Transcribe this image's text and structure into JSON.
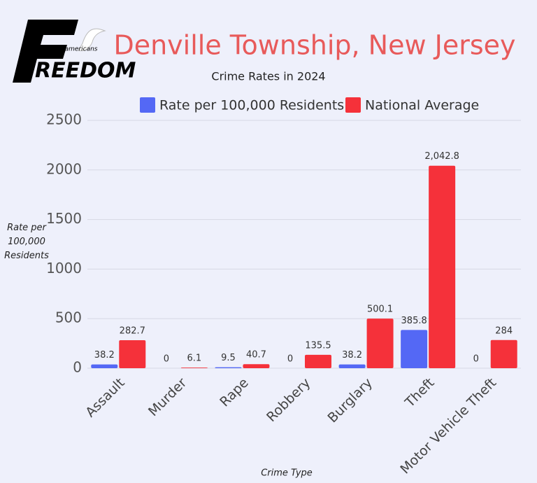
{
  "logo": {
    "tagline": "for all americans",
    "word": "REEDOM"
  },
  "chart_data": {
    "type": "bar",
    "title": "Denville Township, New Jersey",
    "subtitle": "Crime Rates in 2024",
    "x_label": "Crime Type",
    "y_label": "Rate per 100,000 Residents",
    "categories": [
      "Assault",
      "Murder",
      "Rape",
      "Robbery",
      "Burglary",
      "Theft",
      "Motor Vehicle Theft"
    ],
    "series": [
      {
        "name": "Rate per 100,000 Residents",
        "color": "#5468f5",
        "values": [
          38.2,
          0,
          9.5,
          0,
          38.2,
          385.8,
          0
        ],
        "value_labels": [
          "38.2",
          "0",
          "9.5",
          "0",
          "38.2",
          "385.8",
          "0"
        ]
      },
      {
        "name": "National Average",
        "color": "#f5313a",
        "values": [
          282.7,
          6.1,
          40.7,
          135.5,
          500.1,
          2042.8,
          284
        ],
        "value_labels": [
          "282.7",
          "6.1",
          "40.7",
          "135.5",
          "500.1",
          "2,042.8",
          "284"
        ]
      }
    ],
    "ylim": [
      0,
      2500
    ],
    "yticks": [
      0,
      500,
      1000,
      1500,
      2000,
      2500
    ],
    "grid": true,
    "legend": "top"
  }
}
